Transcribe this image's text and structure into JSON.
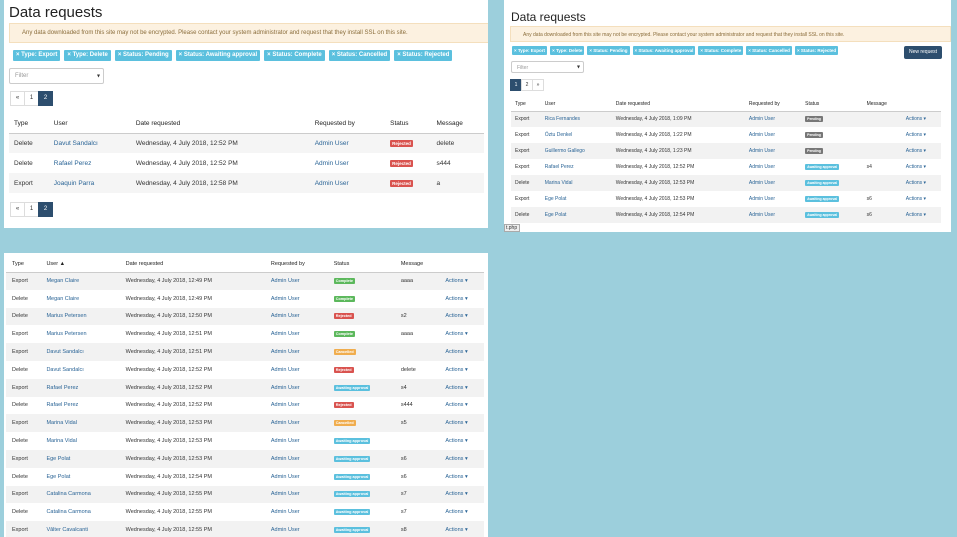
{
  "panel1": {
    "title": "Data requests",
    "alert": "Any data downloaded from this site may not be encrypted. Please contact your system administrator and request that they install SSL on this site.",
    "chips": [
      "× Type: Export",
      "× Type: Delete",
      "× Status: Pending",
      "× Status: Awaiting approval",
      "× Status: Complete",
      "× Status: Cancelled",
      "× Status: Rejected"
    ],
    "filter_placeholder": "Filter",
    "pager": [
      "«",
      "1",
      "2"
    ],
    "columns": [
      "Type",
      "User",
      "Date requested",
      "Requested by",
      "Status",
      "Message"
    ],
    "rows": [
      {
        "type": "Delete",
        "user": "Davut Sandalcı",
        "date": "Wednesday, 4 July 2018, 12:52 PM",
        "by": "Admin User",
        "status": "Rejected",
        "message": "delete"
      },
      {
        "type": "Delete",
        "user": "Rafael Perez",
        "date": "Wednesday, 4 July 2018, 12:52 PM",
        "by": "Admin User",
        "status": "Rejected",
        "message": "s444"
      },
      {
        "type": "Export",
        "user": "Joaquin Parra",
        "date": "Wednesday, 4 July 2018, 12:58 PM",
        "by": "Admin User",
        "status": "Rejected",
        "message": "a"
      }
    ]
  },
  "panel2": {
    "title": "Data requests",
    "alert": "Any data downloaded from this site may not be encrypted. Please contact your system administrator and request that they install SSL on this site.",
    "chips": [
      "× Type: Export",
      "× Type: Delete",
      "× Status: Pending",
      "× Status: Awaiting approval",
      "× Status: Complete",
      "× Status: Cancelled",
      "× Status: Rejected"
    ],
    "new_request": "New request",
    "filter_placeholder": "Filter",
    "pager": [
      "1",
      "2",
      "»"
    ],
    "columns": [
      "Type",
      "User",
      "Date requested",
      "Requested by",
      "Status",
      "Message",
      ""
    ],
    "rows": [
      {
        "type": "Export",
        "user": "Rica Fernandes",
        "date": "Wednesday, 4 July 2018, 1:09 PM",
        "by": "Admin User",
        "status": "Pending",
        "message": "",
        "actions": "Actions"
      },
      {
        "type": "Export",
        "user": "Öztu Denkel",
        "date": "Wednesday, 4 July 2018, 1:22 PM",
        "by": "Admin User",
        "status": "Pending",
        "message": "",
        "actions": "Actions"
      },
      {
        "type": "Export",
        "user": "Guillermo Gallego",
        "date": "Wednesday, 4 July 2018, 1:23 PM",
        "by": "Admin User",
        "status": "Pending",
        "message": "",
        "actions": "Actions"
      },
      {
        "type": "Export",
        "user": "Rafael Perez",
        "date": "Wednesday, 4 July 2018, 12:52 PM",
        "by": "Admin User",
        "status": "Awaiting approval",
        "message": "s4",
        "actions": "Actions"
      },
      {
        "type": "Delete",
        "user": "Marina Vidal",
        "date": "Wednesday, 4 July 2018, 12:53 PM",
        "by": "Admin User",
        "status": "Awaiting approval",
        "message": "",
        "actions": "Actions"
      },
      {
        "type": "Export",
        "user": "Ege Polat",
        "date": "Wednesday, 4 July 2018, 12:53 PM",
        "by": "Admin User",
        "status": "Awaiting approval",
        "message": "s6",
        "actions": "Actions"
      },
      {
        "type": "Delete",
        "user": "Ege Polat",
        "date": "Wednesday, 4 July 2018, 12:54 PM",
        "by": "Admin User",
        "status": "Awaiting approval",
        "message": "s6",
        "actions": "Actions"
      }
    ],
    "footer_tag": "t.php"
  },
  "panel3": {
    "columns": [
      "Type",
      "User ▲",
      "Date requested",
      "Requested by",
      "Status",
      "Message",
      ""
    ],
    "rows": [
      {
        "type": "Export",
        "user": "Megan Claire",
        "date": "Wednesday, 4 July 2018, 12:49 PM",
        "by": "Admin User",
        "status": "Complete",
        "message": "aaaa",
        "actions": "Actions"
      },
      {
        "type": "Delete",
        "user": "Megan Claire",
        "date": "Wednesday, 4 July 2018, 12:49 PM",
        "by": "Admin User",
        "status": "Complete",
        "message": "",
        "actions": "Actions"
      },
      {
        "type": "Delete",
        "user": "Marius Petersen",
        "date": "Wednesday, 4 July 2018, 12:50 PM",
        "by": "Admin User",
        "status": "Rejected",
        "message": "s2",
        "actions": "Actions"
      },
      {
        "type": "Export",
        "user": "Marius Petersen",
        "date": "Wednesday, 4 July 2018, 12:51 PM",
        "by": "Admin User",
        "status": "Complete",
        "message": "aaaa",
        "actions": "Actions"
      },
      {
        "type": "Export",
        "user": "Davut Sandalcı",
        "date": "Wednesday, 4 July 2018, 12:51 PM",
        "by": "Admin User",
        "status": "Cancelled",
        "message": "",
        "actions": "Actions"
      },
      {
        "type": "Delete",
        "user": "Davut Sandalcı",
        "date": "Wednesday, 4 July 2018, 12:52 PM",
        "by": "Admin User",
        "status": "Rejected",
        "message": "delete",
        "actions": "Actions"
      },
      {
        "type": "Export",
        "user": "Rafael Perez",
        "date": "Wednesday, 4 July 2018, 12:52 PM",
        "by": "Admin User",
        "status": "Awaiting approval",
        "message": "s4",
        "actions": "Actions"
      },
      {
        "type": "Delete",
        "user": "Rafael Perez",
        "date": "Wednesday, 4 July 2018, 12:52 PM",
        "by": "Admin User",
        "status": "Rejected",
        "message": "s444",
        "actions": "Actions"
      },
      {
        "type": "Export",
        "user": "Marina Vidal",
        "date": "Wednesday, 4 July 2018, 12:53 PM",
        "by": "Admin User",
        "status": "Cancelled",
        "message": "s5",
        "actions": "Actions"
      },
      {
        "type": "Delete",
        "user": "Marina Vidal",
        "date": "Wednesday, 4 July 2018, 12:53 PM",
        "by": "Admin User",
        "status": "Awaiting approval",
        "message": "",
        "actions": "Actions"
      },
      {
        "type": "Export",
        "user": "Ege Polat",
        "date": "Wednesday, 4 July 2018, 12:53 PM",
        "by": "Admin User",
        "status": "Awaiting approval",
        "message": "s6",
        "actions": "Actions"
      },
      {
        "type": "Delete",
        "user": "Ege Polat",
        "date": "Wednesday, 4 July 2018, 12:54 PM",
        "by": "Admin User",
        "status": "Awaiting approval",
        "message": "s6",
        "actions": "Actions"
      },
      {
        "type": "Export",
        "user": "Catalina Carmona",
        "date": "Wednesday, 4 July 2018, 12:55 PM",
        "by": "Admin User",
        "status": "Awaiting approval",
        "message": "s7",
        "actions": "Actions"
      },
      {
        "type": "Delete",
        "user": "Catalina Carmona",
        "date": "Wednesday, 4 July 2018, 12:55 PM",
        "by": "Admin User",
        "status": "Awaiting approval",
        "message": "s7",
        "actions": "Actions"
      },
      {
        "type": "Export",
        "user": "Vâlter Cavalcanti",
        "date": "Wednesday, 4 July 2018, 12:55 PM",
        "by": "Admin User",
        "status": "Awaiting approval",
        "message": "s8",
        "actions": "Actions"
      }
    ]
  },
  "status_colors": {
    "Rejected": "#d9534f",
    "Complete": "#5cb85c",
    "Cancelled": "#f0ad4e",
    "Pending": "#777777",
    "Awaiting approval": "#5bc0de"
  }
}
